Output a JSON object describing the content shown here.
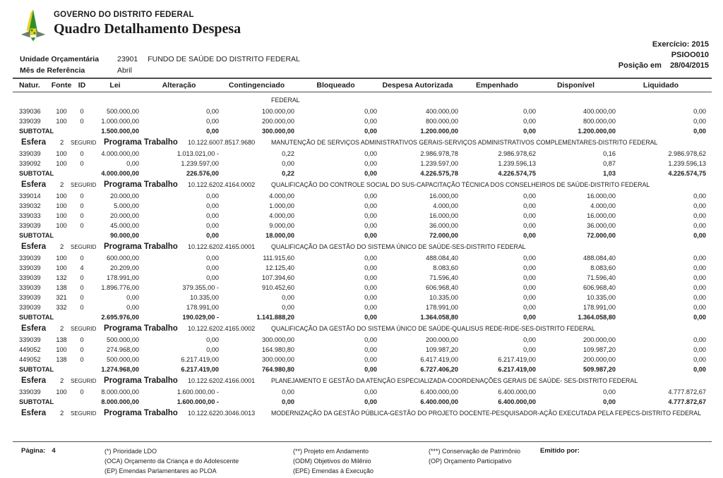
{
  "header": {
    "org": "GOVERNO DO DISTRITO FEDERAL",
    "title": "Quadro Detalhamento Despesa",
    "exercicio_label": "Exercício:",
    "exercicio_value": "2015",
    "report_code": "PSIOO010",
    "posicao_label": "Posição em",
    "posicao_value": "28/04/2015",
    "unidade_label": "Unidade Orçamentária",
    "unidade_code": "23901",
    "unidade_name": "FUNDO DE SAÚDE DO DISTRITO FEDERAL",
    "mes_label": "Mês de Referência",
    "mes_value": "Abril"
  },
  "logo": {
    "green": "#2f8f2a",
    "yellow": "#e8d11f",
    "wing": "#6d806d"
  },
  "table": {
    "columns": [
      "Natur.",
      "Fonte",
      "ID",
      "Lei",
      "Alteração",
      "Contingenciado",
      "Bloqueado",
      "Despesa Autorizada",
      "Empenhado",
      "Disponível",
      "Liquidado"
    ],
    "subtotal_label": "SUBTOTAL",
    "esfera_label": "Esfera",
    "programa_label": "Programa Trabalho",
    "lines": [
      {
        "type": "continuation",
        "text": "FEDERAL"
      },
      {
        "type": "row",
        "cells": [
          "339036",
          "100",
          "0",
          "500.000,00",
          "0,00",
          "100.000,00",
          "0,00",
          "400.000,00",
          "0,00",
          "400.000,00",
          "0,00"
        ]
      },
      {
        "type": "row",
        "cells": [
          "339039",
          "100",
          "0",
          "1.000.000,00",
          "0,00",
          "200.000,00",
          "0,00",
          "800.000,00",
          "0,00",
          "800.000,00",
          "0,00"
        ]
      },
      {
        "type": "subtotal",
        "values": [
          "1.500.000,00",
          "0,00",
          "300.000,00",
          "0,00",
          "1.200.000,00",
          "0,00",
          "1.200.000,00",
          "0,00"
        ]
      },
      {
        "type": "esfera",
        "sphere": "2",
        "regime": "SEGURID",
        "code": "10.122.6007.8517.9680",
        "description": "MANUTENÇÃO DE SERVIÇOS ADMINISTRATIVOS GERAIS-SERVIÇOS ADMINISTRATIVOS COMPLEMENTARES-DISTRITO FEDERAL"
      },
      {
        "type": "row",
        "cells": [
          "339039",
          "100",
          "0",
          "4.000.000,00",
          "1.013.021,00 -",
          "0,22",
          "0,00",
          "2.986.978,78",
          "2.986.978,62",
          "0,16",
          "2.986.978,62"
        ]
      },
      {
        "type": "row",
        "cells": [
          "339092",
          "100",
          "0",
          "0,00",
          "1.239.597,00",
          "0,00",
          "0,00",
          "1.239.597,00",
          "1.239.596,13",
          "0,87",
          "1.239.596,13"
        ]
      },
      {
        "type": "subtotal",
        "values": [
          "4.000.000,00",
          "226.576,00",
          "0,22",
          "0,00",
          "4.226.575,78",
          "4.226.574,75",
          "1,03",
          "4.226.574,75"
        ]
      },
      {
        "type": "esfera",
        "sphere": "2",
        "regime": "SEGURID",
        "code": "10.122.6202.4164.0002",
        "description": "QUALIFICAÇÃO DO CONTROLE SOCIAL DO SUS-CAPACITAÇÃO TÉCNICA DOS CONSELHEIROS DE SAÚDE-DISTRITO FEDERAL"
      },
      {
        "type": "row",
        "cells": [
          "339014",
          "100",
          "0",
          "20.000,00",
          "0,00",
          "4.000,00",
          "0,00",
          "16.000,00",
          "0,00",
          "16.000,00",
          "0,00"
        ]
      },
      {
        "type": "row",
        "cells": [
          "339032",
          "100",
          "0",
          "5.000,00",
          "0,00",
          "1.000,00",
          "0,00",
          "4.000,00",
          "0,00",
          "4.000,00",
          "0,00"
        ]
      },
      {
        "type": "row",
        "cells": [
          "339033",
          "100",
          "0",
          "20.000,00",
          "0,00",
          "4.000,00",
          "0,00",
          "16.000,00",
          "0,00",
          "16.000,00",
          "0,00"
        ]
      },
      {
        "type": "row",
        "cells": [
          "339039",
          "100",
          "0",
          "45.000,00",
          "0,00",
          "9.000,00",
          "0,00",
          "36.000,00",
          "0,00",
          "36.000,00",
          "0,00"
        ]
      },
      {
        "type": "subtotal",
        "values": [
          "90.000,00",
          "0,00",
          "18.000,00",
          "0,00",
          "72.000,00",
          "0,00",
          "72.000,00",
          "0,00"
        ]
      },
      {
        "type": "esfera",
        "sphere": "2",
        "regime": "SEGURID",
        "code": "10.122.6202.4165.0001",
        "description": "QUALIFICAÇÃO DA GESTÃO DO SISTEMA ÚNICO DE SAÚDE-SES-DISTRITO FEDERAL"
      },
      {
        "type": "row",
        "cells": [
          "339039",
          "100",
          "0",
          "600.000,00",
          "0,00",
          "111.915,60",
          "0,00",
          "488.084,40",
          "0,00",
          "488.084,40",
          "0,00"
        ]
      },
      {
        "type": "row",
        "cells": [
          "339039",
          "100",
          "4",
          "20.209,00",
          "0,00",
          "12.125,40",
          "0,00",
          "8.083,60",
          "0,00",
          "8.083,60",
          "0,00"
        ]
      },
      {
        "type": "row",
        "cells": [
          "339039",
          "132",
          "0",
          "178.991,00",
          "0,00",
          "107.394,60",
          "0,00",
          "71.596,40",
          "0,00",
          "71.596,40",
          "0,00"
        ]
      },
      {
        "type": "row",
        "cells": [
          "339039",
          "138",
          "0",
          "1.896.776,00",
          "379.355,00 -",
          "910.452,60",
          "0,00",
          "606.968,40",
          "0,00",
          "606.968,40",
          "0,00"
        ]
      },
      {
        "type": "row",
        "cells": [
          "339039",
          "321",
          "0",
          "0,00",
          "10.335,00",
          "0,00",
          "0,00",
          "10.335,00",
          "0,00",
          "10.335,00",
          "0,00"
        ]
      },
      {
        "type": "row",
        "cells": [
          "339039",
          "332",
          "0",
          "0,00",
          "178.991,00",
          "0,00",
          "0,00",
          "178.991,00",
          "0,00",
          "178.991,00",
          "0,00"
        ]
      },
      {
        "type": "subtotal",
        "values": [
          "2.695.976,00",
          "190.029,00 -",
          "1.141.888,20",
          "0,00",
          "1.364.058,80",
          "0,00",
          "1.364.058,80",
          "0,00"
        ]
      },
      {
        "type": "esfera",
        "sphere": "2",
        "regime": "SEGURID",
        "code": "10.122.6202.4165.0002",
        "description": "QUALIFICAÇÃO DA GESTÃO DO SISTEMA ÚNICO DE SAÚDE-QUALISUS REDE-RIDE-SES-DISTRITO FEDERAL"
      },
      {
        "type": "row",
        "cells": [
          "339039",
          "138",
          "0",
          "500.000,00",
          "0,00",
          "300.000,00",
          "0,00",
          "200.000,00",
          "0,00",
          "200.000,00",
          "0,00"
        ]
      },
      {
        "type": "row",
        "cells": [
          "449052",
          "100",
          "0",
          "274.968,00",
          "0,00",
          "164.980,80",
          "0,00",
          "109.987,20",
          "0,00",
          "109.987,20",
          "0,00"
        ]
      },
      {
        "type": "row",
        "cells": [
          "449052",
          "138",
          "0",
          "500.000,00",
          "6.217.419,00",
          "300.000,00",
          "0,00",
          "6.417.419,00",
          "6.217.419,00",
          "200.000,00",
          "0,00"
        ]
      },
      {
        "type": "subtotal",
        "values": [
          "1.274.968,00",
          "6.217.419,00",
          "764.980,80",
          "0,00",
          "6.727.406,20",
          "6.217.419,00",
          "509.987,20",
          "0,00"
        ]
      },
      {
        "type": "esfera",
        "sphere": "2",
        "regime": "SEGURID",
        "code": "10.122.6202.4166.0001",
        "description": "PLANEJAMENTO E GESTÃO DA ATENÇÃO ESPECIALIZADA-COORDENAÇÕES GERAIS DE SAÚDE- SES-DISTRITO FEDERAL"
      },
      {
        "type": "row",
        "cells": [
          "339039",
          "100",
          "0",
          "8.000.000,00",
          "1.600.000,00 -",
          "0,00",
          "0,00",
          "6.400.000,00",
          "6.400.000,00",
          "0,00",
          "4.777.872,67"
        ]
      },
      {
        "type": "subtotal",
        "values": [
          "8.000.000,00",
          "1.600.000,00 -",
          "0,00",
          "0,00",
          "6.400.000,00",
          "6.400.000,00",
          "0,00",
          "4.777.872,67"
        ]
      },
      {
        "type": "esfera",
        "sphere": "2",
        "regime": "SEGURID",
        "code": "10.122.6220.3046.0013",
        "description": "MODERNIZAÇÃO DA GESTÃO PÚBLICA-GESTÃO DO PROJETO DOCENTE-PESQUISADOR-AÇÃO EXECUTADA PELA FEPECS-DISTRITO FEDERAL"
      }
    ]
  },
  "footer": {
    "page_label": "Página:",
    "page_number": "4",
    "legend_col1": [
      "(*)  Prioridade LDO",
      "(OCA)  Orçamento da Criança e do Adolescente",
      "(EP)  Emendas Parlamentares ao PLOA"
    ],
    "legend_col2": [
      "(**)  Projeto em Andamento",
      "(ODM) Objetivos do Milênio",
      "(EPE) Emendas à Execução"
    ],
    "legend_col3": [
      "(***)  Conservação de Patrimônio",
      "(OP) Orçamento Participativo"
    ],
    "emitido_label": "Emitido por:"
  }
}
